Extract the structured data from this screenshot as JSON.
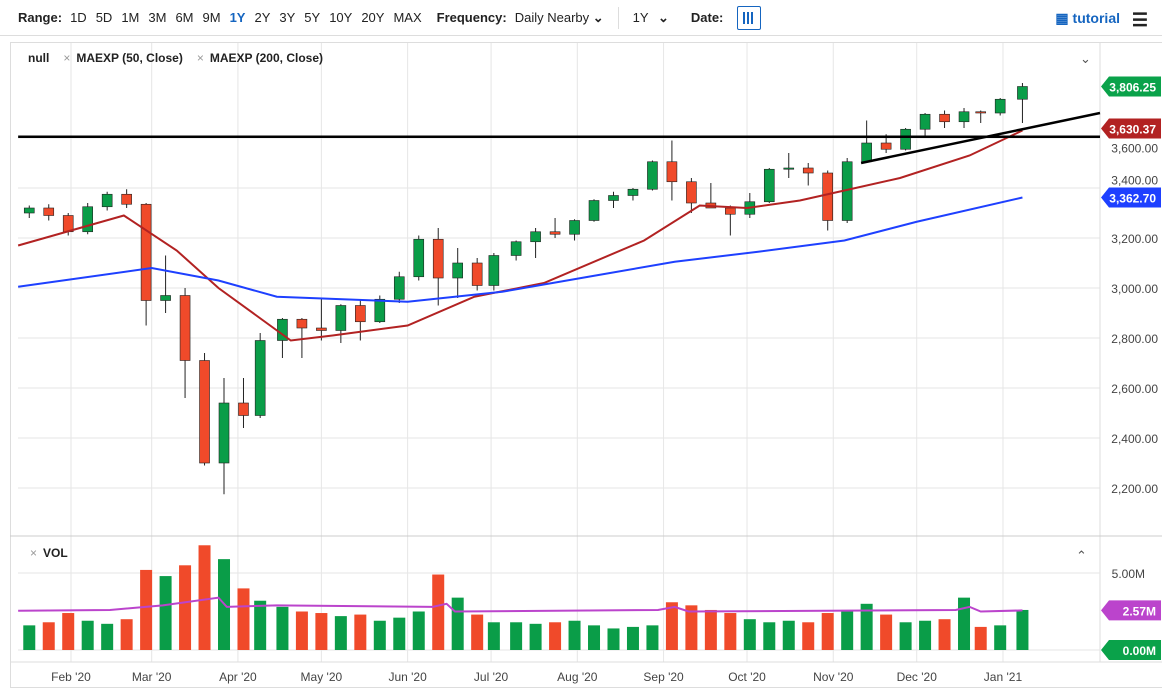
{
  "toolbar": {
    "range_label": "Range:",
    "ranges": [
      "1D",
      "5D",
      "1M",
      "3M",
      "6M",
      "9M",
      "1Y",
      "2Y",
      "3Y",
      "5Y",
      "10Y",
      "20Y",
      "MAX"
    ],
    "active_range": "1Y",
    "frequency_label": "Frequency:",
    "frequency_value": "Daily Nearby",
    "period_value": "1Y",
    "date_label": "Date:",
    "tutorial_label": "tutorial"
  },
  "legend": {
    "symbol": "null",
    "studies": [
      "MAEXP (50, Close)",
      "MAEXP (200, Close)"
    ]
  },
  "volume_panel": {
    "label": "VOL"
  },
  "colors": {
    "up": "#0a9d48",
    "down": "#f04a2a",
    "ma50": "#b22222",
    "ma200": "#1e40ff",
    "vol_ma": "#bb44cc",
    "last_price": "#0aa24a"
  },
  "chart_data": {
    "type": "candlestick",
    "y_ticks": [
      "2,200.00",
      "2,400.00",
      "2,600.00",
      "2,800.00",
      "3,000.00",
      "3,200.00",
      "3,400.00",
      "3,600.00"
    ],
    "ylim": [
      2080,
      3880
    ],
    "vol_ticks": [
      "0.00M",
      "5.00M"
    ],
    "vol_ylim": [
      0,
      7.2
    ],
    "x_ticks": [
      [
        "2020-02-01",
        "Feb '20"
      ],
      [
        "2020-03-01",
        "Mar '20"
      ],
      [
        "2020-04-01",
        "Apr '20"
      ],
      [
        "2020-05-01",
        "May '20"
      ],
      [
        "2020-06-01",
        "Jun '20"
      ],
      [
        "2020-07-01",
        "Jul '20"
      ],
      [
        "2020-08-01",
        "Aug '20"
      ],
      [
        "2020-09-01",
        "Sep '20"
      ],
      [
        "2020-10-01",
        "Oct '20"
      ],
      [
        "2020-11-01",
        "Nov '20"
      ],
      [
        "2020-12-01",
        "Dec '20"
      ],
      [
        "2021-01-01",
        "Jan '21"
      ]
    ],
    "xlim": [
      "2020-01-13",
      "2021-01-29"
    ],
    "last_labels": {
      "close": "3,806.25",
      "ma50": "3,630.37",
      "ma200": "3,362.70",
      "vol_ma": "2.57M",
      "vol_zero": "0.00M"
    },
    "ohlcv": [
      [
        "2020-01-17",
        3300,
        3330,
        3280,
        3320,
        1.6
      ],
      [
        "2020-01-24",
        3320,
        3335,
        3270,
        3290,
        1.8
      ],
      [
        "2020-01-31",
        3290,
        3300,
        3210,
        3225,
        2.4
      ],
      [
        "2020-02-07",
        3225,
        3340,
        3215,
        3325,
        1.9
      ],
      [
        "2020-02-14",
        3325,
        3385,
        3310,
        3375,
        1.7
      ],
      [
        "2020-02-21",
        3375,
        3395,
        3320,
        3335,
        2.0
      ],
      [
        "2020-02-28",
        3335,
        3340,
        2850,
        2950,
        5.2
      ],
      [
        "2020-03-06",
        2950,
        3130,
        2900,
        2970,
        4.8
      ],
      [
        "2020-03-13",
        2970,
        3000,
        2560,
        2710,
        5.5
      ],
      [
        "2020-03-20",
        2710,
        2740,
        2290,
        2300,
        6.8
      ],
      [
        "2020-03-27",
        2300,
        2640,
        2175,
        2540,
        5.9
      ],
      [
        "2020-04-03",
        2540,
        2640,
        2440,
        2490,
        4.0
      ],
      [
        "2020-04-09",
        2490,
        2820,
        2480,
        2790,
        3.2
      ],
      [
        "2020-04-17",
        2790,
        2880,
        2720,
        2875,
        2.8
      ],
      [
        "2020-04-24",
        2875,
        2880,
        2720,
        2840,
        2.5
      ],
      [
        "2020-05-01",
        2840,
        2960,
        2790,
        2830,
        2.4
      ],
      [
        "2020-05-08",
        2830,
        2935,
        2780,
        2930,
        2.2
      ],
      [
        "2020-05-15",
        2930,
        2950,
        2790,
        2865,
        2.3
      ],
      [
        "2020-05-22",
        2865,
        2970,
        2860,
        2955,
        1.9
      ],
      [
        "2020-05-29",
        2955,
        3065,
        2940,
        3045,
        2.1
      ],
      [
        "2020-06-05",
        3045,
        3210,
        3030,
        3195,
        2.5
      ],
      [
        "2020-06-12",
        3195,
        3240,
        2930,
        3040,
        4.9
      ],
      [
        "2020-06-19",
        3040,
        3160,
        2960,
        3100,
        3.4
      ],
      [
        "2020-06-26",
        3100,
        3120,
        2990,
        3010,
        2.3
      ],
      [
        "2020-07-02",
        3010,
        3140,
        2990,
        3130,
        1.8
      ],
      [
        "2020-07-10",
        3130,
        3190,
        3110,
        3185,
        1.8
      ],
      [
        "2020-07-17",
        3185,
        3240,
        3120,
        3225,
        1.7
      ],
      [
        "2020-07-24",
        3225,
        3280,
        3200,
        3215,
        1.8
      ],
      [
        "2020-07-31",
        3215,
        3275,
        3190,
        3270,
        1.9
      ],
      [
        "2020-08-07",
        3270,
        3355,
        3265,
        3350,
        1.6
      ],
      [
        "2020-08-14",
        3350,
        3385,
        3320,
        3370,
        1.4
      ],
      [
        "2020-08-21",
        3370,
        3400,
        3350,
        3395,
        1.5
      ],
      [
        "2020-08-28",
        3395,
        3510,
        3390,
        3505,
        1.6
      ],
      [
        "2020-09-04",
        3505,
        3590,
        3350,
        3425,
        3.1
      ],
      [
        "2020-09-11",
        3425,
        3440,
        3300,
        3340,
        2.9
      ],
      [
        "2020-09-18",
        3340,
        3420,
        3320,
        3320,
        2.6
      ],
      [
        "2020-09-25",
        3320,
        3330,
        3210,
        3295,
        2.4
      ],
      [
        "2020-10-02",
        3295,
        3380,
        3280,
        3345,
        2.0
      ],
      [
        "2020-10-09",
        3345,
        3480,
        3340,
        3475,
        1.8
      ],
      [
        "2020-10-16",
        3475,
        3540,
        3440,
        3480,
        1.9
      ],
      [
        "2020-10-23",
        3480,
        3500,
        3410,
        3460,
        1.8
      ],
      [
        "2020-10-30",
        3460,
        3470,
        3230,
        3270,
        2.4
      ],
      [
        "2020-11-06",
        3270,
        3520,
        3260,
        3505,
        2.6
      ],
      [
        "2020-11-13",
        3505,
        3670,
        3500,
        3580,
        3.0
      ],
      [
        "2020-11-20",
        3580,
        3615,
        3540,
        3555,
        2.3
      ],
      [
        "2020-11-27",
        3555,
        3640,
        3550,
        3635,
        1.8
      ],
      [
        "2020-12-04",
        3635,
        3700,
        3600,
        3695,
        1.9
      ],
      [
        "2020-12-11",
        3695,
        3710,
        3640,
        3665,
        2.0
      ],
      [
        "2020-12-18",
        3665,
        3720,
        3640,
        3705,
        3.4
      ],
      [
        "2020-12-24",
        3705,
        3710,
        3660,
        3700,
        1.5
      ],
      [
        "2020-12-31",
        3700,
        3760,
        3690,
        3755,
        1.6
      ],
      [
        "2021-01-08",
        3755,
        3820,
        3660,
        3806,
        2.6
      ]
    ],
    "ma50": [
      [
        "2020-01-13",
        3170
      ],
      [
        "2020-02-20",
        3290
      ],
      [
        "2020-03-10",
        3150
      ],
      [
        "2020-03-25",
        3000
      ],
      [
        "2020-04-20",
        2790
      ],
      [
        "2020-05-05",
        2810
      ],
      [
        "2020-06-01",
        2850
      ],
      [
        "2020-06-25",
        2965
      ],
      [
        "2020-07-20",
        3020
      ],
      [
        "2020-08-25",
        3190
      ],
      [
        "2020-09-14",
        3330
      ],
      [
        "2020-10-01",
        3320
      ],
      [
        "2020-10-20",
        3350
      ],
      [
        "2020-11-05",
        3390
      ],
      [
        "2020-11-25",
        3440
      ],
      [
        "2020-12-20",
        3530
      ],
      [
        "2021-01-08",
        3630
      ]
    ],
    "ma200": [
      [
        "2020-01-13",
        3005
      ],
      [
        "2020-03-01",
        3080
      ],
      [
        "2020-03-25",
        3030
      ],
      [
        "2020-04-15",
        2965
      ],
      [
        "2020-06-01",
        2945
      ],
      [
        "2020-07-05",
        2985
      ],
      [
        "2020-08-05",
        3045
      ],
      [
        "2020-09-05",
        3105
      ],
      [
        "2020-10-05",
        3145
      ],
      [
        "2020-11-05",
        3190
      ],
      [
        "2020-12-01",
        3265
      ],
      [
        "2021-01-08",
        3362
      ]
    ],
    "vol_ma": [
      [
        "2020-01-13",
        2.55
      ],
      [
        "2020-02-15",
        2.6
      ],
      [
        "2020-03-05",
        2.9
      ],
      [
        "2020-03-25",
        3.4
      ],
      [
        "2020-03-28",
        2.8
      ],
      [
        "2020-04-15",
        2.9
      ],
      [
        "2020-06-10",
        2.8
      ],
      [
        "2020-06-15",
        3.0
      ],
      [
        "2020-06-18",
        2.5
      ],
      [
        "2020-08-30",
        2.6
      ],
      [
        "2020-09-05",
        2.8
      ],
      [
        "2020-09-10",
        2.5
      ],
      [
        "2020-12-15",
        2.6
      ],
      [
        "2020-12-20",
        2.8
      ],
      [
        "2020-12-24",
        2.5
      ],
      [
        "2021-01-08",
        2.57
      ]
    ],
    "trendlines": [
      {
        "from": [
          "2020-01-13",
          3605
        ],
        "to": [
          "2021-01-29",
          3605
        ]
      },
      {
        "from": [
          "2020-11-11",
          3500
        ],
        "to": [
          "2021-01-29",
          3700
        ]
      }
    ]
  }
}
